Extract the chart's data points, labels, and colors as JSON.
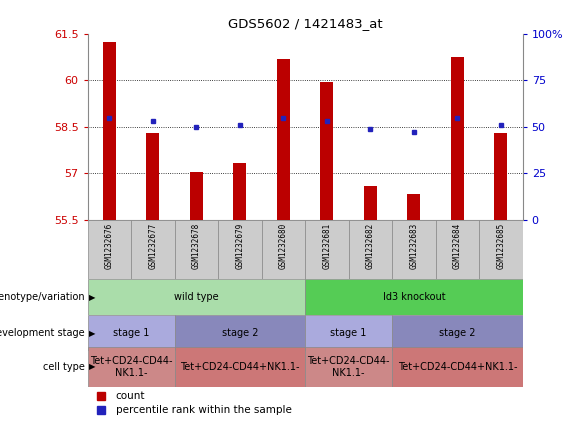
{
  "title": "GDS5602 / 1421483_at",
  "samples": [
    "GSM1232676",
    "GSM1232677",
    "GSM1232678",
    "GSM1232679",
    "GSM1232680",
    "GSM1232681",
    "GSM1232682",
    "GSM1232683",
    "GSM1232684",
    "GSM1232685"
  ],
  "counts": [
    61.25,
    58.3,
    57.05,
    57.35,
    60.7,
    59.95,
    56.6,
    56.35,
    60.75,
    58.3
  ],
  "percentiles": [
    55,
    53,
    50,
    51,
    55,
    53,
    49,
    47,
    55,
    51
  ],
  "ymin": 55.5,
  "ymax": 61.5,
  "yticks": [
    55.5,
    57.0,
    58.5,
    60.0,
    61.5
  ],
  "ytick_labels": [
    "55.5",
    "57",
    "58.5",
    "60",
    "61.5"
  ],
  "y2min": 0,
  "y2max": 100,
  "y2ticks": [
    0,
    25,
    50,
    75,
    100
  ],
  "y2tick_labels": [
    "0",
    "25",
    "50",
    "75",
    "100%"
  ],
  "bar_color": "#bb0000",
  "dot_color": "#2222bb",
  "bar_width": 0.3,
  "genotype_row": {
    "label": "genotype/variation",
    "groups": [
      {
        "text": "wild type",
        "start": 0,
        "end": 5,
        "color": "#aaddaa"
      },
      {
        "text": "Id3 knockout",
        "start": 5,
        "end": 10,
        "color": "#55cc55"
      }
    ]
  },
  "stage_row": {
    "label": "development stage",
    "groups": [
      {
        "text": "stage 1",
        "start": 0,
        "end": 2,
        "color": "#aaaadd"
      },
      {
        "text": "stage 2",
        "start": 2,
        "end": 5,
        "color": "#8888bb"
      },
      {
        "text": "stage 1",
        "start": 5,
        "end": 7,
        "color": "#aaaadd"
      },
      {
        "text": "stage 2",
        "start": 7,
        "end": 10,
        "color": "#8888bb"
      }
    ]
  },
  "celltype_row": {
    "label": "cell type",
    "groups": [
      {
        "text": "Tet+CD24-CD44-\nNK1.1-",
        "start": 0,
        "end": 2,
        "color": "#cc8888"
      },
      {
        "text": "Tet+CD24-CD44+NK1.1-",
        "start": 2,
        "end": 5,
        "color": "#cc7777"
      },
      {
        "text": "Tet+CD24-CD44-\nNK1.1-",
        "start": 5,
        "end": 7,
        "color": "#cc8888"
      },
      {
        "text": "Tet+CD24-CD44+NK1.1-",
        "start": 7,
        "end": 10,
        "color": "#cc7777"
      }
    ]
  },
  "grid_yticks": [
    57.0,
    58.5,
    60.0
  ],
  "left_label_color": "#cc0000",
  "right_label_color": "#0000cc",
  "sample_bg_color": "#cccccc",
  "sample_border_color": "#888888"
}
